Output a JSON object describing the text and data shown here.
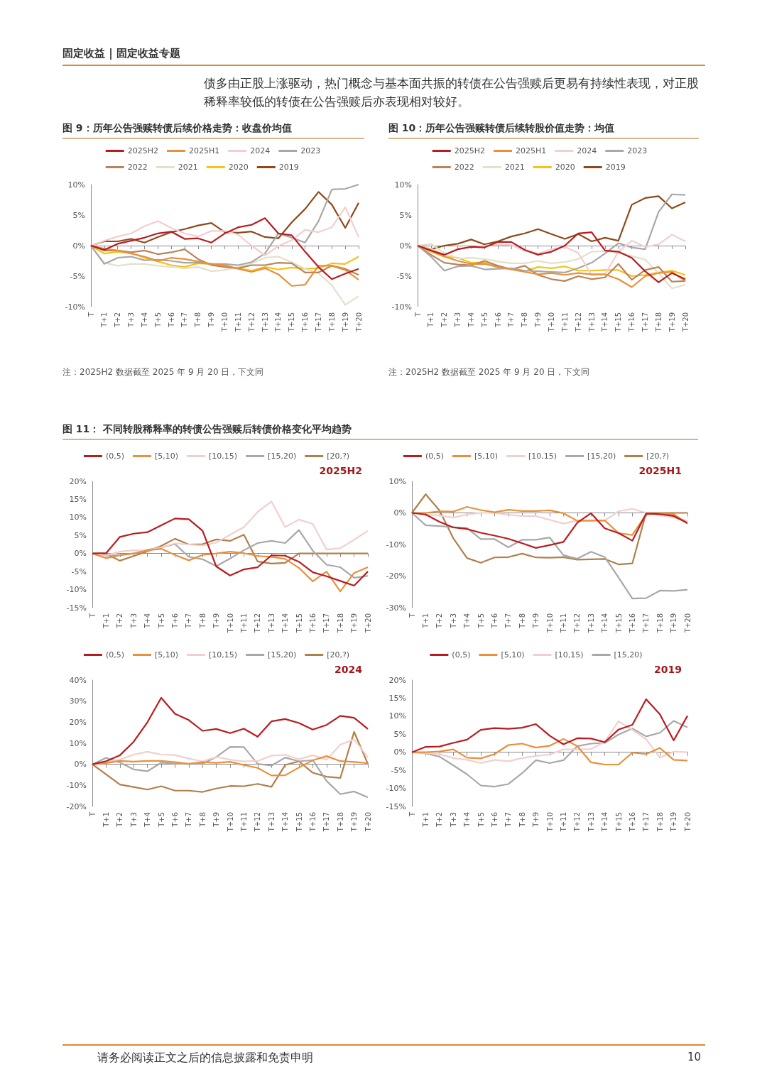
{
  "chart_data": [
    {
      "type": "line",
      "title": "图 9：历年公告强赎转债后续价格走势：收盘价均值",
      "annotations": [
        "固定收益 | 固定收益专题",
        "债多由正股上涨驱动，热门概念与基本面共振的转债在公告强赎后更易有持续性表现，对正股稀释率较低的转债在公告强赎后亦表现相对较好。",
        "注：2025H2 数据截至 2025 年 9 月 20 日，下文同"
      ],
      "categories": [
        "T",
        "T+1",
        "T+2",
        "T+3",
        "T+4",
        "T+5",
        "T+6",
        "T+7",
        "T+8",
        "T+9",
        "T+10",
        "T+11",
        "T+12",
        "T+13",
        "T+14",
        "T+15",
        "T+16",
        "T+17",
        "T+18",
        "T+19",
        "T+20"
      ],
      "ylim": [
        -10,
        10
      ],
      "yticks": [
        {
          "value": -10,
          "label": "-10%"
        },
        {
          "value": -5,
          "label": "-5%"
        },
        {
          "value": 0,
          "label": "0%"
        },
        {
          "value": 5,
          "label": "5%"
        },
        {
          "value": 10,
          "label": "10%"
        }
      ],
      "legend": "top",
      "marker": "none",
      "series": [
        {
          "name": "2025H2",
          "color": "#b81c22",
          "values": [
            0,
            -0.7,
            0.3,
            0.8,
            1.3,
            2.0,
            2.3,
            1.1,
            1.2,
            0.5,
            2.0,
            3.0,
            3.4,
            4.5,
            2.0,
            1.7,
            -1.0,
            -3.5,
            -5.5,
            -4.6,
            -3.8
          ]
        },
        {
          "name": "2025H1",
          "color": "#e8903c",
          "values": [
            0,
            -0.5,
            -0.8,
            -1.3,
            -1.8,
            -2.5,
            -2.0,
            -2.2,
            -2.6,
            -3.0,
            -3.2,
            -3.8,
            -4.3,
            -3.7,
            -4.7,
            -6.6,
            -6.4,
            -3.3,
            -3.3,
            -4.0,
            -5.6
          ]
        },
        {
          "name": "2024",
          "color": "#f2cfcf",
          "values": [
            0,
            0.8,
            1.5,
            2.0,
            3.2,
            4.0,
            2.9,
            2.0,
            1.5,
            2.4,
            2.4,
            1.8,
            0.0,
            -1.6,
            -0.1,
            0.9,
            2.6,
            2.2,
            3.0,
            6.3,
            1.4
          ]
        },
        {
          "name": "2023",
          "color": "#a8a8a8",
          "values": [
            0,
            -3.0,
            -2.0,
            -1.8,
            -2.4,
            -2.3,
            -2.5,
            -2.8,
            -2.8,
            -3.0,
            -3.0,
            -3.2,
            -2.7,
            -1.3,
            2.0,
            1.3,
            0.5,
            4.0,
            9.2,
            9.3,
            10.0
          ]
        },
        {
          "name": "2022",
          "color": "#b8845a",
          "values": [
            0,
            -0.8,
            -0.8,
            -1.1,
            -0.8,
            -1.4,
            -1.1,
            -0.6,
            -2.2,
            -3.2,
            -3.5,
            -3.7,
            -3.2,
            -3.2,
            -2.8,
            -2.9,
            -4.4,
            -4.4,
            -3.3,
            -3.8,
            -4.8
          ]
        },
        {
          "name": "2021",
          "color": "#e3e1c8",
          "values": [
            0,
            -2.8,
            -3.3,
            -3.0,
            -3.0,
            -3.3,
            -3.5,
            -3.7,
            -3.5,
            -4.2,
            -4.0,
            -3.5,
            -2.9,
            -2.0,
            -1.8,
            -2.7,
            -3.8,
            -4.5,
            -6.5,
            -9.7,
            -8.3
          ]
        },
        {
          "name": "2020",
          "color": "#f5c21a",
          "values": [
            0,
            -1.3,
            -1.0,
            -1.2,
            -2.0,
            -2.6,
            -3.2,
            -3.5,
            -2.9,
            -3.0,
            -3.4,
            -3.7,
            -4.1,
            -3.5,
            -3.9,
            -3.6,
            -3.8,
            -3.7,
            -2.9,
            -3.0,
            -1.8
          ]
        },
        {
          "name": "2019",
          "color": "#8c4a1a",
          "values": [
            0,
            0.7,
            0.7,
            1.1,
            0.5,
            1.4,
            2.2,
            2.7,
            3.3,
            3.7,
            2.2,
            2.1,
            2.3,
            1.4,
            1.2,
            3.8,
            6.0,
            8.8,
            6.7,
            2.9,
            7.0
          ]
        }
      ]
    },
    {
      "type": "line",
      "title": "图 10：历年公告强赎转债后续转股价值走势：均值",
      "annotations": [
        "注：2025H2 数据截至 2025 年 9 月 20 日，下文同"
      ],
      "categories": [
        "T",
        "T+1",
        "T+2",
        "T+3",
        "T+4",
        "T+5",
        "T+6",
        "T+7",
        "T+8",
        "T+9",
        "T+10",
        "T+11",
        "T+12",
        "T+13",
        "T+14",
        "T+15",
        "T+16",
        "T+17",
        "T+18",
        "T+19",
        "T+20"
      ],
      "ylim": [
        -10,
        10
      ],
      "yticks": [
        {
          "value": -10,
          "label": "-10%"
        },
        {
          "value": -5,
          "label": "-5%"
        },
        {
          "value": 0,
          "label": "0%"
        },
        {
          "value": 5,
          "label": "5%"
        },
        {
          "value": 10,
          "label": "10%"
        }
      ],
      "legend": "top",
      "marker": "none",
      "series": [
        {
          "name": "2025H2",
          "color": "#b81c22",
          "values": [
            0,
            -0.8,
            -1.5,
            -0.6,
            -0.2,
            -0.3,
            0.6,
            0.6,
            -0.7,
            -1.5,
            -1.0,
            0.0,
            2.0,
            2.2,
            -0.8,
            -1.0,
            -2.0,
            -4.2,
            -6.0,
            -4.5,
            -5.5
          ]
        },
        {
          "name": "2025H1",
          "color": "#e8903c",
          "values": [
            0,
            -0.8,
            -1.8,
            -2.5,
            -3.0,
            -3.0,
            -3.5,
            -3.9,
            -4.3,
            -4.7,
            -4.5,
            -4.8,
            -4.5,
            -4.7,
            -4.7,
            -5.5,
            -6.8,
            -5.0,
            -4.5,
            -4.3,
            -5.8
          ]
        },
        {
          "name": "2024",
          "color": "#f2cfcf",
          "values": [
            0,
            -0.5,
            -1.5,
            -0.5,
            -0.3,
            0.0,
            0.2,
            0.1,
            -0.8,
            -1.3,
            -0.6,
            -0.2,
            -1.2,
            -4.8,
            -4.7,
            -1.0,
            0.8,
            -0.2,
            0.2,
            1.8,
            0.7
          ]
        },
        {
          "name": "2023",
          "color": "#a8a8a8",
          "values": [
            0,
            -1.8,
            -4.1,
            -3.4,
            -3.3,
            -3.9,
            -3.8,
            -3.7,
            -4.1,
            -4.2,
            -4.3,
            -4.4,
            -3.7,
            -2.8,
            -1.3,
            0.4,
            -0.3,
            -0.6,
            5.5,
            8.4,
            8.3
          ]
        },
        {
          "name": "2022",
          "color": "#b8845a",
          "values": [
            0,
            -1.5,
            -2.8,
            -3.1,
            -3.2,
            -2.5,
            -3.3,
            -3.9,
            -3.3,
            -4.8,
            -5.5,
            -5.8,
            -5.0,
            -5.5,
            -5.2,
            -3.0,
            -5.6,
            -4.0,
            -3.5,
            -5.9,
            -5.8
          ]
        },
        {
          "name": "2021",
          "color": "#e3e1c8",
          "values": [
            0,
            0.3,
            -1.2,
            -2.1,
            -2.0,
            -2.2,
            -2.6,
            -2.9,
            -2.9,
            -2.5,
            -2.9,
            -2.7,
            -2.2,
            -1.0,
            -0.9,
            -1.2,
            -1.7,
            -2.3,
            -4.5,
            -7.0,
            -6.4
          ]
        },
        {
          "name": "2020",
          "color": "#f5c21a",
          "values": [
            0,
            -1.0,
            -1.8,
            -2.0,
            -2.8,
            -2.8,
            -3.5,
            -3.8,
            -4.2,
            -3.5,
            -3.7,
            -3.4,
            -4.1,
            -4.1,
            -4.0,
            -4.0,
            -5.0,
            -4.8,
            -4.4,
            -4.1,
            -4.8
          ]
        },
        {
          "name": "2019",
          "color": "#8c4a1a",
          "values": [
            0,
            -0.6,
            0.0,
            0.3,
            1.0,
            0.2,
            0.7,
            1.5,
            2.0,
            2.7,
            1.9,
            1.1,
            1.9,
            0.7,
            1.3,
            0.8,
            6.7,
            7.8,
            8.1,
            6.1,
            7.1
          ]
        }
      ]
    },
    {
      "type": "line",
      "title": "图 11：  不同转股稀释率的转债公告强赎后转债价格变化平均趋势",
      "annotations": [
        "2025H2"
      ],
      "categories": [
        "T",
        "T+1",
        "T+2",
        "T+3",
        "T+4",
        "T+5",
        "T+6",
        "T+7",
        "T+8",
        "T+9",
        "T+10",
        "T+11",
        "T+12",
        "T+13",
        "T+14",
        "T+15",
        "T+16",
        "T+17",
        "T+18",
        "T+19",
        "T+20"
      ],
      "ylim": [
        -15,
        20
      ],
      "yticks": [
        {
          "value": -15,
          "label": "-15%"
        },
        {
          "value": -10,
          "label": "-10%"
        },
        {
          "value": -5,
          "label": "-5%"
        },
        {
          "value": 0,
          "label": "0%"
        },
        {
          "value": 5,
          "label": "5%"
        },
        {
          "value": 10,
          "label": "10%"
        },
        {
          "value": 15,
          "label": "15%"
        },
        {
          "value": 20,
          "label": "20%"
        }
      ],
      "legend": "top",
      "marker": "none",
      "series": [
        {
          "name": "(0,5)",
          "color": "#b81c22",
          "values": [
            0,
            0.1,
            4.6,
            5.5,
            5.9,
            7.8,
            9.7,
            9.5,
            6.3,
            -3.6,
            -6.1,
            -4.4,
            -3.8,
            -0.5,
            -0.6,
            -2.3,
            -5.2,
            -6.3,
            -7.6,
            -8.9,
            -5.0
          ]
        },
        {
          "name": "[5,10)",
          "color": "#e8903c",
          "values": [
            0,
            -1.3,
            -0.5,
            0.0,
            0.9,
            1.3,
            -0.4,
            -1.9,
            -0.4,
            0.0,
            0.5,
            0.1,
            -0.7,
            -0.9,
            -1.5,
            -4.0,
            -7.7,
            -5.0,
            -10.5,
            -5.4,
            -3.8
          ]
        },
        {
          "name": "[10,15)",
          "color": "#f2cfcf",
          "values": [
            0,
            -0.5,
            0.5,
            0.9,
            0.8,
            1.7,
            2.8,
            2.5,
            2.2,
            3.0,
            5.2,
            7.3,
            11.5,
            14.4,
            7.3,
            9.4,
            8.2,
            1.1,
            1.5,
            3.8,
            6.3
          ]
        },
        {
          "name": "[15,20)",
          "color": "#a8a8a8",
          "values": [
            0,
            -0.6,
            -0.4,
            0.0,
            1.0,
            1.7,
            2.6,
            -0.9,
            -1.6,
            -3.5,
            -1.4,
            0.9,
            2.9,
            3.5,
            2.9,
            6.5,
            0.8,
            -3.1,
            -3.8,
            -6.7,
            -6.2
          ]
        },
        {
          "name": "[20,?)",
          "color": "#b0804a",
          "values": [
            0,
            -0.1,
            -2.0,
            -0.7,
            0.6,
            2.1,
            4.1,
            2.5,
            2.6,
            3.9,
            3.5,
            5.2,
            -2.2,
            -2.8,
            -2.6,
            0,
            0,
            0,
            0,
            0,
            0
          ]
        }
      ]
    },
    {
      "type": "line",
      "annotations": [
        "2025H1"
      ],
      "categories": [
        "T",
        "T+1",
        "T+2",
        "T+3",
        "T+4",
        "T+5",
        "T+6",
        "T+7",
        "T+8",
        "T+9",
        "T+10",
        "T+11",
        "T+12",
        "T+13",
        "T+14",
        "T+15",
        "T+16",
        "T+17",
        "T+18",
        "T+19",
        "T+20"
      ],
      "ylim": [
        -30,
        10
      ],
      "yticks": [
        {
          "value": -30,
          "label": "-30%"
        },
        {
          "value": -20,
          "label": "-20%"
        },
        {
          "value": -10,
          "label": "-10%"
        },
        {
          "value": 0,
          "label": "0%"
        },
        {
          "value": 10,
          "label": "10%"
        }
      ],
      "legend": "top",
      "marker": "none",
      "series": [
        {
          "name": "(0,5)",
          "color": "#b81c22",
          "values": [
            0,
            -0.5,
            -2.8,
            -4.6,
            -5.1,
            -6.3,
            -7.2,
            -8.2,
            -9.6,
            -11.1,
            -10.2,
            -9.2,
            -3.1,
            -0.1,
            -4.9,
            -6.4,
            -8.8,
            -0.2,
            -0.4,
            -1.0,
            -3.2
          ]
        },
        {
          "name": "[5,10)",
          "color": "#e8903c",
          "values": [
            0,
            0,
            0.5,
            0.4,
            1.9,
            0.9,
            0.2,
            1.0,
            0.6,
            0.6,
            0.8,
            -0.1,
            -2.5,
            -2.5,
            -2.4,
            -6.4,
            -7.0,
            -0.5,
            -0.2,
            -0.4,
            -3.4
          ]
        },
        {
          "name": "[10,15)",
          "color": "#f2cfcf",
          "values": [
            0,
            -0.5,
            -0.8,
            -1.5,
            -0.5,
            0.0,
            0.0,
            -0.6,
            -1.0,
            -1.0,
            -2.2,
            -3.4,
            -2.4,
            -2.3,
            -2.4,
            0.5,
            1.3,
            0.0,
            -0.7,
            -1.5,
            -2.5
          ]
        },
        {
          "name": "[15,20)",
          "color": "#a8a8a8",
          "values": [
            0,
            -3.9,
            -4.2,
            -4.5,
            -4.8,
            -8.3,
            -8.3,
            -10.9,
            -8.5,
            -8.5,
            -7.8,
            -13.4,
            -14.5,
            -12.3,
            -14.0,
            -20.5,
            -27.1,
            -27.0,
            -24.6,
            -24.7,
            -24.3
          ]
        },
        {
          "name": "[20,?)",
          "color": "#b0804a",
          "values": [
            0,
            5.9,
            0.8,
            -8.0,
            -14.3,
            -15.8,
            -14.1,
            -14.0,
            -12.9,
            -14.1,
            -14.2,
            -14.0,
            -14.8,
            -14.7,
            -14.6,
            -16.3,
            -16.0,
            0,
            0,
            0,
            0
          ]
        }
      ]
    },
    {
      "type": "line",
      "annotations": [
        "2024"
      ],
      "categories": [
        "T",
        "T+1",
        "T+2",
        "T+3",
        "T+4",
        "T+5",
        "T+6",
        "T+7",
        "T+8",
        "T+9",
        "T+10",
        "T+11",
        "T+12",
        "T+13",
        "T+14",
        "T+15",
        "T+16",
        "T+17",
        "T+18",
        "T+19",
        "T+20"
      ],
      "ylim": [
        -20,
        40
      ],
      "yticks": [
        {
          "value": -20,
          "label": "-20%"
        },
        {
          "value": -10,
          "label": "-10%"
        },
        {
          "value": 0,
          "label": "0%"
        },
        {
          "value": 10,
          "label": "10%"
        },
        {
          "value": 20,
          "label": "20%"
        },
        {
          "value": 30,
          "label": "30%"
        },
        {
          "value": 40,
          "label": "40%"
        }
      ],
      "legend": "top",
      "marker": "none",
      "series": [
        {
          "name": "(0,5)",
          "color": "#b81c22",
          "values": [
            0,
            1.5,
            4.3,
            10.7,
            20.0,
            31.6,
            24.0,
            21.0,
            15.9,
            16.8,
            14.8,
            16.9,
            13.1,
            20.4,
            21.5,
            19.6,
            16.5,
            18.7,
            23.0,
            22.1,
            16.8
          ]
        },
        {
          "name": "[5,10)",
          "color": "#e8903c",
          "values": [
            0,
            0.6,
            1.6,
            1.3,
            1.6,
            1.6,
            1.0,
            0.3,
            1.0,
            0.7,
            1.2,
            -0.3,
            -1.7,
            -5.3,
            -5.2,
            -1.5,
            1.9,
            3.9,
            1.5,
            1.1,
            0.5
          ]
        },
        {
          "name": "[10,15)",
          "color": "#f2cfcf",
          "values": [
            0,
            1.2,
            2.2,
            4.6,
            6.0,
            4.6,
            4.4,
            2.7,
            1.4,
            3.5,
            2.2,
            1.4,
            1.6,
            4.1,
            4.5,
            2.4,
            4.3,
            2.2,
            9.3,
            11.9,
            3.3
          ]
        },
        {
          "name": "[15,20)",
          "color": "#a8a8a8",
          "values": [
            0,
            3.1,
            0.9,
            -2.4,
            -3.3,
            0.8,
            0.3,
            0.2,
            0.2,
            3.5,
            8.3,
            8.2,
            0.2,
            -0.6,
            3.2,
            1.4,
            2.0,
            -7.9,
            -14.2,
            -12.9,
            -15.7
          ]
        },
        {
          "name": "[20,?)",
          "color": "#b0804a",
          "values": [
            0,
            -4.8,
            -9.6,
            -10.8,
            -12.0,
            -10.4,
            -12.5,
            -12.5,
            -13.1,
            -11.5,
            -10.3,
            -10.4,
            -9.3,
            -10.7,
            -0.3,
            1.4,
            -4.0,
            -5.9,
            -6.5,
            15.4,
            0.2
          ]
        }
      ]
    },
    {
      "type": "line",
      "annotations": [
        "2019",
        "请务必阅读正文之后的信息披露和免责申明",
        "10"
      ],
      "categories": [
        "T",
        "T+1",
        "T+2",
        "T+3",
        "T+4",
        "T+5",
        "T+6",
        "T+7",
        "T+8",
        "T+9",
        "T+10",
        "T+11",
        "T+12",
        "T+13",
        "T+14",
        "T+15",
        "T+16",
        "T+17",
        "T+18",
        "T+19",
        "T+20"
      ],
      "ylim": [
        -15,
        20
      ],
      "yticks": [
        {
          "value": -15,
          "label": "-15%"
        },
        {
          "value": -10,
          "label": "-10%"
        },
        {
          "value": -5,
          "label": "-5%"
        },
        {
          "value": 0,
          "label": "0%"
        },
        {
          "value": 5,
          "label": "5%"
        },
        {
          "value": 10,
          "label": "10%"
        },
        {
          "value": 15,
          "label": "15%"
        },
        {
          "value": 20,
          "label": "20%"
        }
      ],
      "legend": "top",
      "marker": "none",
      "series": [
        {
          "name": "(0,5)",
          "color": "#b81c22",
          "values": [
            0,
            1.5,
            1.6,
            2.6,
            3.5,
            6.2,
            6.7,
            6.5,
            6.8,
            7.8,
            4.6,
            2.2,
            3.9,
            3.8,
            2.8,
            6.3,
            7.6,
            14.7,
            10.5,
            3.3,
            10.1
          ]
        },
        {
          "name": "[5,10)",
          "color": "#e8903c",
          "values": [
            0,
            0,
            0.2,
            0.8,
            -1.5,
            -1.7,
            -0.5,
            2.0,
            2.4,
            1.3,
            1.8,
            3.7,
            1.7,
            -2.8,
            -3.4,
            -3.4,
            -0.1,
            -0.5,
            1.2,
            -2.1,
            -2.3
          ]
        },
        {
          "name": "[10,15)",
          "color": "#f2cfcf",
          "values": [
            0,
            -0.2,
            -0.5,
            -1.6,
            -2.1,
            -3.0,
            -2.1,
            -2.5,
            -1.6,
            -1.0,
            -0.6,
            0.8,
            0.8,
            0.9,
            2.9,
            8.6,
            6.2,
            3.6,
            -1.5,
            0.2,
            0.0
          ]
        },
        {
          "name": "[15,20)",
          "color": "#a8a8a8",
          "values": [
            0,
            -0.3,
            -1.2,
            -3.6,
            -6.1,
            -9.2,
            -9.5,
            -8.8,
            -5.8,
            -2.2,
            -3.0,
            -2.2,
            1.7,
            2.4,
            2.6,
            4.9,
            6.6,
            4.4,
            5.4,
            8.7,
            6.9
          ]
        }
      ]
    }
  ]
}
